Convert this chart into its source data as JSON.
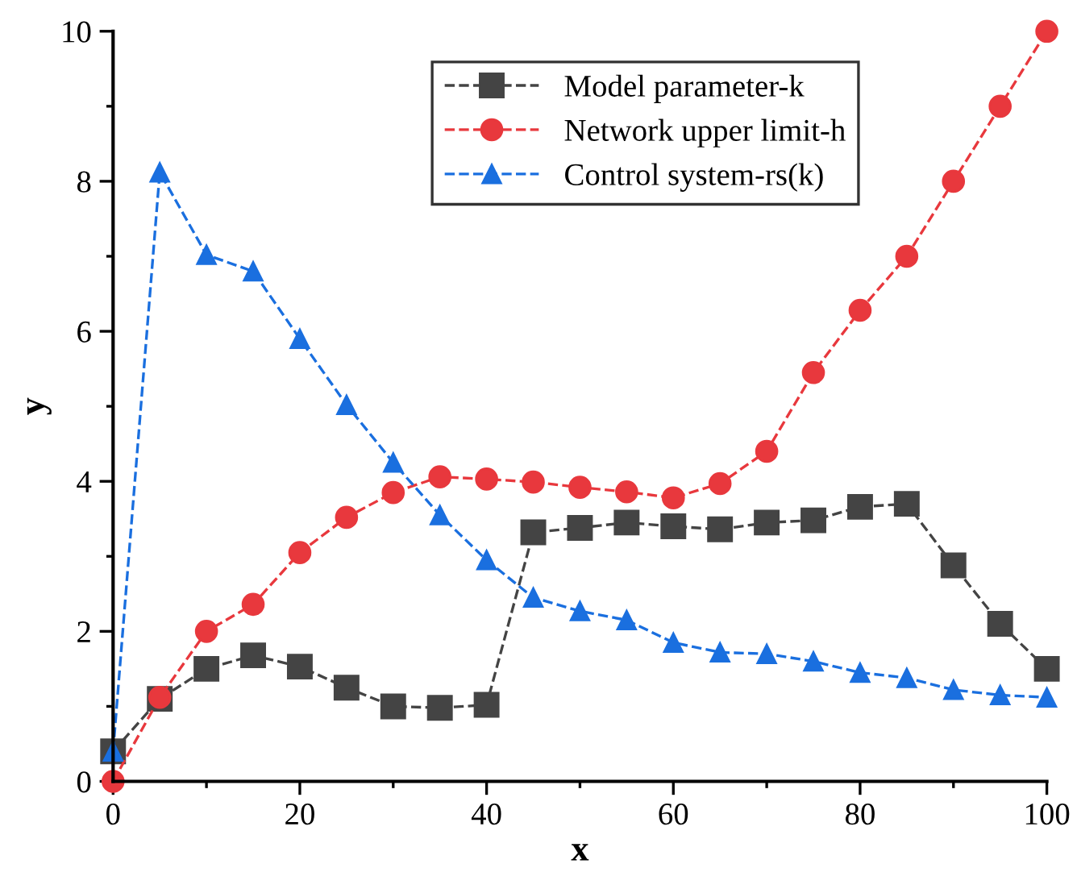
{
  "chart_data": {
    "type": "line",
    "xlabel": "x",
    "ylabel": "y",
    "x": [
      0,
      5,
      10,
      15,
      20,
      25,
      30,
      35,
      40,
      45,
      50,
      55,
      60,
      65,
      70,
      75,
      80,
      85,
      90,
      95,
      100
    ],
    "series": [
      {
        "name": "Model parameter-k",
        "color": "#444444",
        "marker": "square",
        "values": [
          0.4,
          1.1,
          1.5,
          1.68,
          1.53,
          1.25,
          1.0,
          0.98,
          1.02,
          3.32,
          3.38,
          3.45,
          3.4,
          3.36,
          3.45,
          3.48,
          3.66,
          3.7,
          2.88,
          2.1,
          1.5
        ]
      },
      {
        "name": "Network upper limit-h",
        "color": "#e8383d",
        "marker": "circle",
        "values": [
          0,
          1.12,
          2.0,
          2.36,
          3.05,
          3.52,
          3.85,
          4.06,
          4.03,
          3.99,
          3.92,
          3.86,
          3.78,
          3.97,
          4.4,
          5.45,
          6.28,
          7.0,
          8.0,
          9.0,
          10.0
        ]
      },
      {
        "name": "Control system-rs(k)",
        "color": "#1a6fdf",
        "marker": "triangle",
        "values": [
          0.4,
          8.12,
          7.02,
          6.8,
          5.9,
          5.02,
          4.25,
          3.55,
          2.95,
          2.45,
          2.27,
          2.15,
          1.85,
          1.72,
          1.7,
          1.6,
          1.45,
          1.38,
          1.22,
          1.15,
          1.12
        ]
      }
    ],
    "xlim": [
      0,
      100
    ],
    "ylim": [
      0,
      10
    ],
    "xticks": [
      0,
      20,
      40,
      60,
      80,
      100
    ],
    "yticks": [
      0,
      2,
      4,
      6,
      8,
      10
    ],
    "line_style": "dashed",
    "legend": "top",
    "grid": false
  }
}
